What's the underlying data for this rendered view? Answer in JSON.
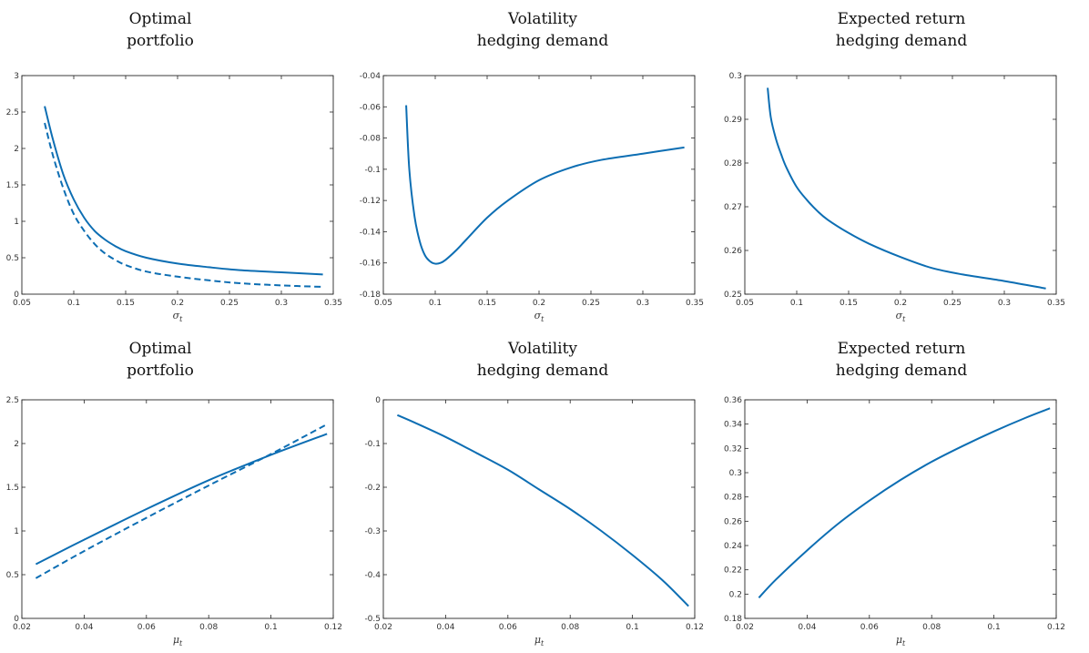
{
  "colors": {
    "series": "#0d6eb3",
    "axis": "#262626"
  },
  "chart_data": [
    {
      "type": "line",
      "title_lines": [
        "Optimal",
        "portfolio"
      ],
      "xlabel": "σ",
      "xlabel_sub": "t",
      "xlim": [
        0.05,
        0.35
      ],
      "ylim": [
        0,
        3
      ],
      "xticks": [
        0.05,
        0.1,
        0.15,
        0.2,
        0.25,
        0.3,
        0.35
      ],
      "xtick_labels": [
        "0.05",
        "0.1",
        "0.15",
        "0.2",
        "0.25",
        "0.3",
        "0.35"
      ],
      "yticks": [
        0,
        0.5,
        1,
        1.5,
        2,
        2.5,
        3
      ],
      "ytick_labels": [
        "0",
        "0.5",
        "1",
        "1.5",
        "2",
        "2.5",
        "3"
      ],
      "series": [
        {
          "style": "solid",
          "x": [
            0.072,
            0.08,
            0.09,
            0.1,
            0.11,
            0.12,
            0.13,
            0.14,
            0.15,
            0.17,
            0.2,
            0.23,
            0.26,
            0.3,
            0.34
          ],
          "y": [
            2.58,
            2.12,
            1.64,
            1.3,
            1.05,
            0.87,
            0.75,
            0.66,
            0.59,
            0.5,
            0.42,
            0.37,
            0.33,
            0.3,
            0.27
          ]
        },
        {
          "style": "dashed",
          "x": [
            0.072,
            0.08,
            0.09,
            0.1,
            0.11,
            0.12,
            0.13,
            0.14,
            0.15,
            0.17,
            0.2,
            0.23,
            0.26,
            0.3,
            0.34
          ],
          "y": [
            2.35,
            1.9,
            1.45,
            1.1,
            0.87,
            0.69,
            0.56,
            0.47,
            0.4,
            0.31,
            0.24,
            0.19,
            0.15,
            0.12,
            0.1
          ]
        }
      ]
    },
    {
      "type": "line",
      "title_lines": [
        "Volatility",
        "hedging demand"
      ],
      "xlabel": "σ",
      "xlabel_sub": "t",
      "xlim": [
        0.05,
        0.35
      ],
      "ylim": [
        -0.18,
        -0.04
      ],
      "xticks": [
        0.05,
        0.1,
        0.15,
        0.2,
        0.25,
        0.3,
        0.35
      ],
      "xtick_labels": [
        "0.05",
        "0.1",
        "0.15",
        "0.2",
        "0.25",
        "0.3",
        "0.35"
      ],
      "yticks": [
        -0.18,
        -0.16,
        -0.14,
        -0.12,
        -0.1,
        -0.08,
        -0.06,
        -0.04
      ],
      "ytick_labels": [
        "-0.18",
        "-0.16",
        "-0.14",
        "-0.12",
        "-0.1",
        "-0.08",
        "-0.06",
        "-0.04"
      ],
      "series": [
        {
          "style": "solid",
          "x": [
            0.072,
            0.075,
            0.08,
            0.085,
            0.09,
            0.095,
            0.1,
            0.105,
            0.11,
            0.12,
            0.13,
            0.15,
            0.17,
            0.2,
            0.23,
            0.26,
            0.3,
            0.34
          ],
          "y": [
            -0.059,
            -0.1,
            -0.13,
            -0.146,
            -0.155,
            -0.159,
            -0.1605,
            -0.16,
            -0.158,
            -0.152,
            -0.145,
            -0.131,
            -0.12,
            -0.107,
            -0.099,
            -0.094,
            -0.09,
            -0.086
          ]
        }
      ]
    },
    {
      "type": "line",
      "title_lines": [
        "Expected return",
        "hedging demand"
      ],
      "xlabel": "σ",
      "xlabel_sub": "t",
      "xlim": [
        0.05,
        0.35
      ],
      "ylim": [
        0.25,
        0.3
      ],
      "xticks": [
        0.05,
        0.1,
        0.15,
        0.2,
        0.25,
        0.3,
        0.35
      ],
      "xtick_labels": [
        "0.05",
        "0.1",
        "0.15",
        "0.2",
        "0.25",
        "0.3",
        "0.35"
      ],
      "yticks": [
        0.25,
        0.26,
        0.27,
        0.28,
        0.29,
        0.3
      ],
      "ytick_labels": [
        "0.25",
        "0.26",
        "0.27",
        "0.28",
        "0.29",
        "0.3"
      ],
      "series": [
        {
          "style": "solid",
          "x": [
            0.072,
            0.075,
            0.08,
            0.085,
            0.09,
            0.1,
            0.11,
            0.12,
            0.13,
            0.15,
            0.17,
            0.2,
            0.23,
            0.26,
            0.3,
            0.34
          ],
          "y": [
            0.2972,
            0.2905,
            0.2855,
            0.282,
            0.279,
            0.2745,
            0.2715,
            0.269,
            0.267,
            0.264,
            0.2615,
            0.2585,
            0.256,
            0.2545,
            0.253,
            0.2513
          ]
        }
      ]
    },
    {
      "type": "line",
      "title_lines": [
        "Optimal",
        "portfolio"
      ],
      "xlabel": "μ",
      "xlabel_sub": "t",
      "xlim": [
        0.02,
        0.12
      ],
      "ylim": [
        0,
        2.5
      ],
      "xticks": [
        0.02,
        0.04,
        0.06,
        0.08,
        0.1,
        0.12
      ],
      "xtick_labels": [
        "0.02",
        "0.04",
        "0.06",
        "0.08",
        "0.1",
        "0.12"
      ],
      "yticks": [
        0,
        0.5,
        1,
        1.5,
        2,
        2.5
      ],
      "ytick_labels": [
        "0",
        "0.5",
        "1",
        "1.5",
        "2",
        "2.5"
      ],
      "series": [
        {
          "style": "solid",
          "x": [
            0.0245,
            0.04,
            0.06,
            0.08,
            0.1,
            0.118
          ],
          "y": [
            0.62,
            0.9,
            1.25,
            1.58,
            1.87,
            2.11
          ]
        },
        {
          "style": "dashed",
          "x": [
            0.0245,
            0.04,
            0.06,
            0.08,
            0.1,
            0.118
          ],
          "y": [
            0.46,
            0.77,
            1.15,
            1.52,
            1.88,
            2.22
          ]
        }
      ]
    },
    {
      "type": "line",
      "title_lines": [
        "Volatility",
        "hedging demand"
      ],
      "xlabel": "μ",
      "xlabel_sub": "t",
      "xlim": [
        0.02,
        0.12
      ],
      "ylim": [
        -0.5,
        0
      ],
      "xticks": [
        0.02,
        0.04,
        0.06,
        0.08,
        0.1,
        0.12
      ],
      "xtick_labels": [
        "0.02",
        "0.04",
        "0.06",
        "0.08",
        "0.1",
        "0.12"
      ],
      "yticks": [
        -0.5,
        -0.4,
        -0.3,
        -0.2,
        -0.1,
        0
      ],
      "ytick_labels": [
        "-0.5",
        "-0.4",
        "-0.3",
        "-0.2",
        "-0.1",
        "0"
      ],
      "series": [
        {
          "style": "solid",
          "x": [
            0.0245,
            0.03,
            0.04,
            0.05,
            0.06,
            0.07,
            0.08,
            0.09,
            0.1,
            0.11,
            0.118
          ],
          "y": [
            -0.035,
            -0.052,
            -0.085,
            -0.122,
            -0.16,
            -0.205,
            -0.25,
            -0.3,
            -0.355,
            -0.415,
            -0.472
          ]
        }
      ]
    },
    {
      "type": "line",
      "title_lines": [
        "Expected return",
        "hedging demand"
      ],
      "xlabel": "μ",
      "xlabel_sub": "t",
      "xlim": [
        0.02,
        0.12
      ],
      "ylim": [
        0.18,
        0.36
      ],
      "xticks": [
        0.02,
        0.04,
        0.06,
        0.08,
        0.1,
        0.12
      ],
      "xtick_labels": [
        "0.02",
        "0.04",
        "0.06",
        "0.08",
        "0.1",
        "0.12"
      ],
      "yticks": [
        0.18,
        0.2,
        0.22,
        0.24,
        0.26,
        0.28,
        0.3,
        0.32,
        0.34,
        0.36
      ],
      "ytick_labels": [
        "0.18",
        "0.2",
        "0.22",
        "0.24",
        "0.26",
        "0.28",
        "0.3",
        "0.32",
        "0.34",
        "0.36"
      ],
      "series": [
        {
          "style": "solid",
          "x": [
            0.0245,
            0.03,
            0.04,
            0.05,
            0.06,
            0.07,
            0.08,
            0.09,
            0.1,
            0.11,
            0.118
          ],
          "y": [
            0.197,
            0.212,
            0.236,
            0.258,
            0.277,
            0.294,
            0.309,
            0.322,
            0.334,
            0.345,
            0.353
          ]
        }
      ]
    }
  ]
}
